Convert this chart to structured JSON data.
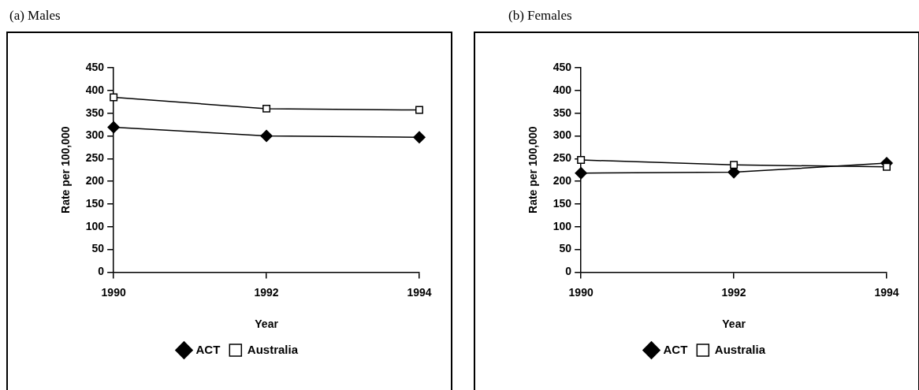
{
  "chart_data": [
    {
      "type": "line",
      "title": "(a) Males",
      "xlabel": "Year",
      "ylabel": "Rate per 100,000",
      "x": [
        1990,
        1992,
        1994
      ],
      "xlim": [
        1990,
        1994
      ],
      "xticks": [
        1990,
        1992,
        1994
      ],
      "ylim": [
        0,
        450
      ],
      "yticks": [
        0,
        50,
        100,
        150,
        200,
        250,
        300,
        350,
        400,
        450
      ],
      "grid": false,
      "legend": "bottom",
      "series": [
        {
          "name": "ACT",
          "color": "#000000",
          "marker": "diamond",
          "values": [
            319,
            300,
            297
          ]
        },
        {
          "name": "Australia",
          "color": "#000000",
          "marker": "square",
          "values": [
            385,
            360,
            357
          ]
        }
      ]
    },
    {
      "type": "line",
      "title": "(b) Females",
      "xlabel": "Year",
      "ylabel": "Rate per 100,000",
      "x": [
        1990,
        1992,
        1994
      ],
      "xlim": [
        1990,
        1994
      ],
      "xticks": [
        1990,
        1992,
        1994
      ],
      "ylim": [
        0,
        450
      ],
      "yticks": [
        0,
        50,
        100,
        150,
        200,
        250,
        300,
        350,
        400,
        450
      ],
      "grid": false,
      "legend": "bottom",
      "series": [
        {
          "name": "ACT",
          "color": "#000000",
          "marker": "diamond",
          "values": [
            218,
            220,
            240
          ]
        },
        {
          "name": "Australia",
          "color": "#000000",
          "marker": "square",
          "values": [
            247,
            236,
            232
          ]
        }
      ]
    }
  ]
}
